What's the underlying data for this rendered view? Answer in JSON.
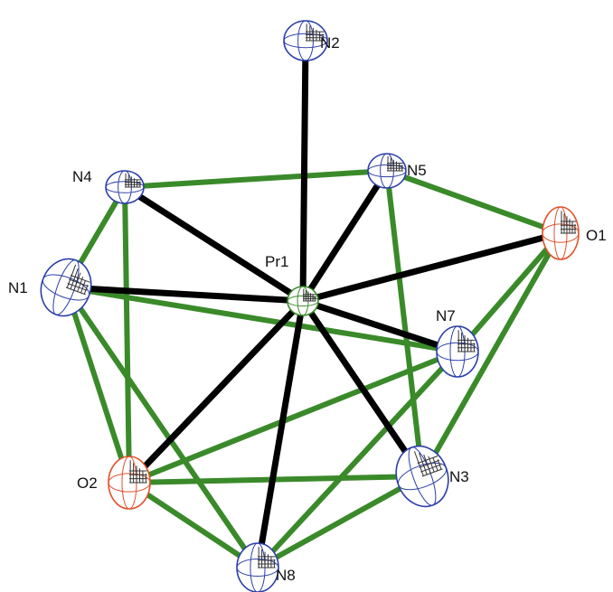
{
  "colors": {
    "background": "#ffffff",
    "coordination_bond": "#000000",
    "polyhedron_edge": "#3a8a2a",
    "nitrogen_outline": "#2c3fa8",
    "oxygen_outline": "#e0502a",
    "metal_outline": "#3a8a2a",
    "label_text": "#111111"
  },
  "atoms": [
    {
      "id": "Pr1",
      "label": "Pr1",
      "element": "Pr"
    },
    {
      "id": "N1",
      "label": "N1",
      "element": "N"
    },
    {
      "id": "N2",
      "label": "N2",
      "element": "N"
    },
    {
      "id": "N3",
      "label": "N3",
      "element": "N"
    },
    {
      "id": "N4",
      "label": "N4",
      "element": "N"
    },
    {
      "id": "N5",
      "label": "N5",
      "element": "N"
    },
    {
      "id": "N7",
      "label": "N7",
      "element": "N"
    },
    {
      "id": "N8",
      "label": "N8",
      "element": "N"
    },
    {
      "id": "O1",
      "label": "O1",
      "element": "O"
    },
    {
      "id": "O2",
      "label": "O2",
      "element": "O"
    }
  ],
  "coordination_bonds": [
    [
      "Pr1",
      "N2"
    ],
    [
      "Pr1",
      "N4"
    ],
    [
      "Pr1",
      "N5"
    ],
    [
      "Pr1",
      "O1"
    ],
    [
      "Pr1",
      "N1"
    ],
    [
      "Pr1",
      "N7"
    ],
    [
      "Pr1",
      "N3"
    ],
    [
      "Pr1",
      "N8"
    ],
    [
      "Pr1",
      "O2"
    ]
  ],
  "polyhedron_edges": [
    [
      "N4",
      "N5"
    ],
    [
      "N5",
      "O1"
    ],
    [
      "N4",
      "N1"
    ],
    [
      "N4",
      "O2"
    ],
    [
      "N1",
      "N7"
    ],
    [
      "N1",
      "O2"
    ],
    [
      "N1",
      "N8"
    ],
    [
      "N5",
      "N3"
    ],
    [
      "O1",
      "N7"
    ],
    [
      "O1",
      "N3"
    ],
    [
      "O2",
      "N3"
    ],
    [
      "O2",
      "N8"
    ],
    [
      "N7",
      "N8"
    ],
    [
      "N3",
      "N8"
    ],
    [
      "N7",
      "O2"
    ]
  ]
}
